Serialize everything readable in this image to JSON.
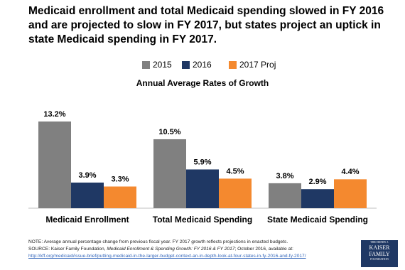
{
  "chart_data": {
    "type": "bar",
    "title": "Medicaid enrollment and total Medicaid spending slowed in FY 2016 and are projected to slow in FY 2017, but states project an uptick in state Medicaid spending in FY 2017.",
    "subtitle": "Annual Average Rates of Growth",
    "categories": [
      "Medicaid Enrollment",
      "Total Medicaid Spending",
      "State Medicaid Spending"
    ],
    "series": [
      {
        "name": "2015",
        "color": "#808080",
        "values": [
          13.2,
          10.5,
          3.8
        ],
        "value_labels": [
          "13.2%",
          "10.5%",
          "3.8%"
        ]
      },
      {
        "name": "2016",
        "color": "#1f3864",
        "values": [
          3.9,
          5.9,
          2.9
        ],
        "value_labels": [
          "3.9%",
          "5.9%",
          "2.9%"
        ]
      },
      {
        "name": "2017 Proj",
        "color": "#f4892f",
        "values": [
          3.3,
          4.5,
          4.4
        ],
        "value_labels": [
          "3.3%",
          "4.5%",
          "4.4%"
        ]
      }
    ],
    "legend_position": "top",
    "note": "NOTE: Average annual percentage change from previous fiscal year. FY 2017 growth reflects projections in enacted budgets.",
    "source_prefix": "SOURCE:  Kaiser Family Foundation,",
    "source_title": "Medicaid Enrollment & Spending Growth: FY 2016  & FY 2017",
    "source_suffix": "; October 2016,  available at:",
    "source_url": "http://kff.org/medicaid/issue-brief/putting-medicaid-in-the-larger-budget-context-an-in-depth-look-at-four-states-in-fy-2016-and-fy-2017/",
    "logo": {
      "top": "THE HENRY J.",
      "line1": "KAISER",
      "line2": "FAMILY",
      "line3": "FOUNDATION"
    }
  }
}
